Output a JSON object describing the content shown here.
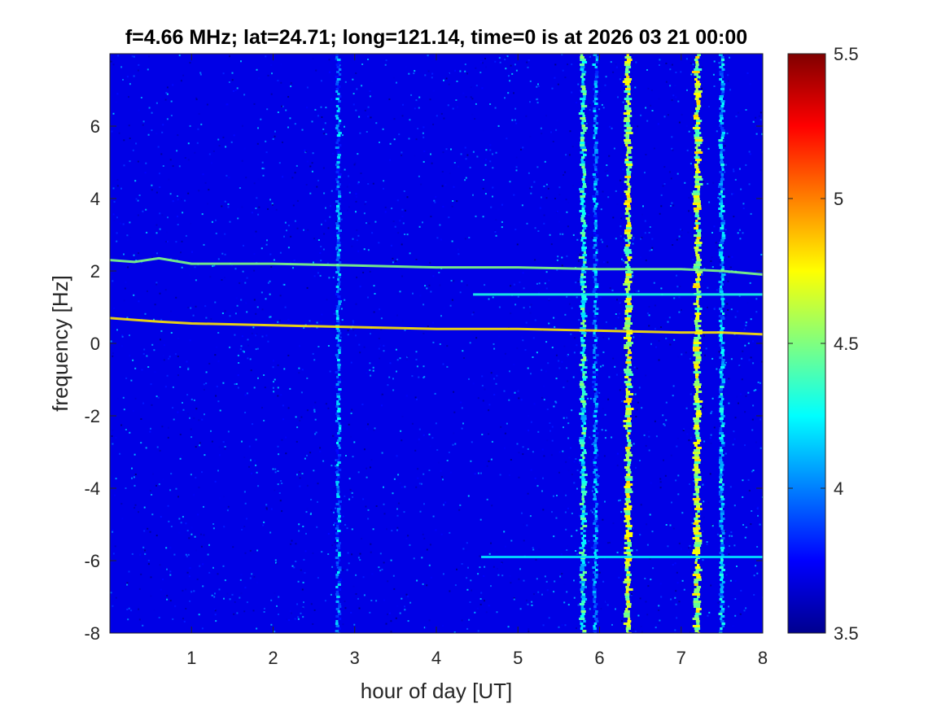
{
  "chart_data": {
    "type": "heatmap",
    "title": "f=4.66 MHz;  lat=24.71; long=121.14, time=0 is at 2026 03 21 00:00",
    "xlabel": "hour of day [UT]",
    "ylabel": "frequency [Hz]",
    "xlim": [
      0,
      8
    ],
    "ylim": [
      -8,
      8
    ],
    "x_ticks": [
      1,
      2,
      3,
      4,
      5,
      6,
      7,
      8
    ],
    "x_tick_labels": [
      "1",
      "2",
      "3",
      "4",
      "5",
      "6",
      "7",
      "8"
    ],
    "y_ticks": [
      -8,
      -6,
      -4,
      -2,
      0,
      2,
      4,
      6
    ],
    "y_tick_labels": [
      "-8",
      "-6",
      "-4",
      "-2",
      "0",
      "2",
      "4",
      "6"
    ],
    "colorbar": {
      "clim": [
        3.5,
        5.5
      ],
      "ticks": [
        3.5,
        4,
        4.5,
        5,
        5.5
      ],
      "tick_labels": [
        "3.5",
        "4",
        "4.5",
        "5",
        "5.5"
      ],
      "colormap": "jet"
    },
    "background_level": 3.7,
    "features": {
      "horizontal_traces": [
        {
          "points": [
            [
              0.0,
              2.3
            ],
            [
              0.3,
              2.25
            ],
            [
              0.6,
              2.35
            ],
            [
              1.0,
              2.2
            ],
            [
              1.5,
              2.2
            ],
            [
              2.0,
              2.2
            ],
            [
              3.0,
              2.15
            ],
            [
              4.0,
              2.1
            ],
            [
              5.0,
              2.1
            ],
            [
              6.0,
              2.05
            ],
            [
              7.0,
              2.05
            ],
            [
              7.5,
              2.0
            ],
            [
              8.0,
              1.9
            ]
          ],
          "level": 4.5
        },
        {
          "points": [
            [
              0.0,
              0.7
            ],
            [
              0.3,
              0.65
            ],
            [
              0.6,
              0.6
            ],
            [
              1.0,
              0.55
            ],
            [
              2.0,
              0.5
            ],
            [
              3.0,
              0.45
            ],
            [
              4.0,
              0.4
            ],
            [
              5.0,
              0.4
            ],
            [
              6.0,
              0.35
            ],
            [
              7.0,
              0.3
            ],
            [
              7.5,
              0.3
            ],
            [
              8.0,
              0.25
            ]
          ],
          "level": 4.8
        },
        {
          "points": [
            [
              4.45,
              1.35
            ],
            [
              8.0,
              1.35
            ]
          ],
          "level": 4.3
        },
        {
          "points": [
            [
              4.55,
              -5.9
            ],
            [
              8.0,
              -5.9
            ]
          ],
          "level": 4.2
        }
      ],
      "vertical_bands": [
        {
          "x": 2.8,
          "level": 4.0
        },
        {
          "x": 5.8,
          "level": 4.3
        },
        {
          "x": 5.95,
          "level": 4.0
        },
        {
          "x": 6.35,
          "level": 4.6
        },
        {
          "x": 7.2,
          "level": 4.6
        },
        {
          "x": 7.5,
          "level": 4.1
        }
      ]
    }
  }
}
